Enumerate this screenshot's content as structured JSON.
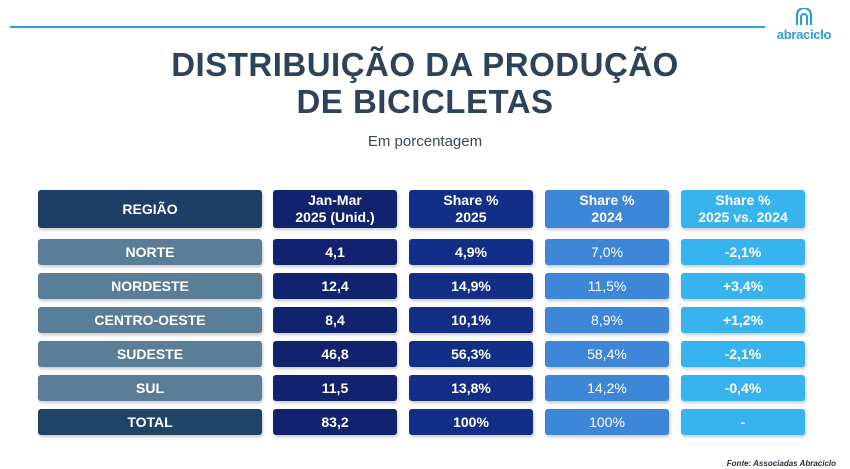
{
  "logo": {
    "text": "abraciclo"
  },
  "title": [
    "DISTRIBUIÇÃO DA PRODUÇÃO",
    "DE BICICLETAS"
  ],
  "subtitle": "Em porcentagem",
  "source": "Fonte: Associadas Abraciclo",
  "colors": {
    "line": "#2aa4d8",
    "title": "#2f4358",
    "region_header": "#1d3f66",
    "region": "#5a7d98",
    "units": "#11236e",
    "share_2025": "#122e86",
    "share_2024": "#3e86d8",
    "variation": "#37b4ee"
  },
  "chart_data": {
    "type": "table",
    "title": "DISTRIBUIÇÃO DA PRODUÇÃO DE BICICLETAS",
    "subtitle": "Em porcentagem",
    "columns": [
      [
        "REGIÃO"
      ],
      [
        "Jan-Mar",
        "2025 (Unid.)"
      ],
      [
        "Share %",
        "2025"
      ],
      [
        "Share %",
        "2024"
      ],
      [
        "Share %",
        "2025 vs. 2024"
      ]
    ],
    "rows": [
      [
        "NORTE",
        "4,1",
        "4,9%",
        "7,0%",
        "-2,1%"
      ],
      [
        "NORDESTE",
        "12,4",
        "14,9%",
        "11,5%",
        "+3,4%"
      ],
      [
        "CENTRO-OESTE",
        "8,4",
        "10,1%",
        "8,9%",
        "+1,2%"
      ],
      [
        "SUDESTE",
        "46,8",
        "56,3%",
        "58,4%",
        "-2,1%"
      ],
      [
        "SUL",
        "11,5",
        "13,8%",
        "14,2%",
        "-0,4%"
      ],
      [
        "TOTAL",
        "83,2",
        "100%",
        "100%",
        "-"
      ]
    ],
    "source": "Fonte: Associadas Abraciclo"
  }
}
